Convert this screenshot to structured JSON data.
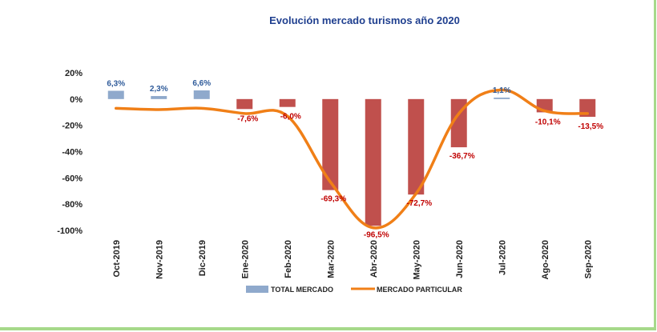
{
  "chart_data": {
    "type": "bar",
    "title": "Evolución mercado turismos año 2020",
    "categories": [
      "Oct-2019",
      "Nov-2019",
      "Dic-2019",
      "Ene-2020",
      "Feb-2020",
      "Mar-2020",
      "Abr-2020",
      "May-2020",
      "Jun-2020",
      "Jul-2020",
      "Ago-2020",
      "Sep-2020"
    ],
    "series": [
      {
        "name": "TOTAL MERCADO",
        "kind": "bar",
        "values": [
          6.3,
          2.3,
          6.6,
          -7.6,
          -6.0,
          -69.3,
          -96.5,
          -72.7,
          -36.7,
          1.1,
          -10.1,
          -13.5
        ],
        "labels": [
          "6,3%",
          "2,3%",
          "6,6%",
          "-7,6%",
          "-6,0%",
          "-69,3%",
          "-96,5%",
          "-72,7%",
          "-36,7%",
          "1,1%",
          "-10,1%",
          "-13,5%"
        ]
      },
      {
        "name": "MERCADO PARTICULAR",
        "kind": "line",
        "values": [
          -7,
          -8,
          -7,
          -11,
          -13,
          -63,
          -98,
          -72,
          -11,
          7,
          -9,
          -11
        ]
      }
    ],
    "ylim": [
      -100,
      20
    ],
    "yticks": [
      "20%",
      "0%",
      "-20%",
      "-40%",
      "-60%",
      "-80%",
      "-100%"
    ],
    "ytick_values": [
      20,
      0,
      -20,
      -40,
      -60,
      -80,
      -100
    ],
    "legend_position": "bottom",
    "colors": {
      "bar_pos": "#8fa9cc",
      "bar_neg": "#c0504d",
      "line": "#f07f17",
      "label_pos": "#2f5b9a",
      "label_neg": "#c00000"
    }
  }
}
